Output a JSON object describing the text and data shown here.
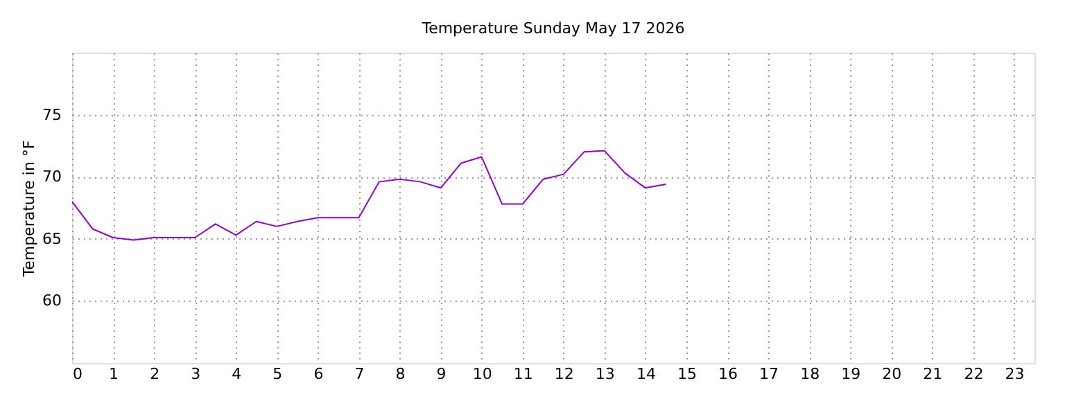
{
  "chart_data": {
    "type": "line",
    "title": "Temperature Sunday May 17 2026",
    "ylabel": "Temperature in °F",
    "x": [
      0,
      0.5,
      1,
      1.5,
      2,
      2.5,
      3,
      3.5,
      4,
      4.5,
      5,
      5.5,
      6,
      6.5,
      7,
      7.5,
      8,
      8.5,
      9,
      9.5,
      10,
      10.5,
      11,
      11.5,
      12,
      12.5,
      13,
      13.5,
      14,
      14.5
    ],
    "series": [
      {
        "color": "#9400d3",
        "values": [
          68.0,
          65.8,
          65.1,
          64.9,
          65.1,
          65.1,
          65.1,
          66.2,
          65.3,
          66.4,
          66.0,
          66.4,
          66.7,
          66.7,
          66.7,
          69.6,
          69.8,
          69.6,
          69.1,
          71.1,
          71.6,
          67.8,
          67.8,
          69.8,
          70.2,
          72.0,
          72.1,
          70.3,
          69.1,
          69.4
        ]
      }
    ],
    "xlim": [
      0,
      23.5
    ],
    "xticks": [
      0,
      1,
      2,
      3,
      4,
      5,
      6,
      7,
      8,
      9,
      10,
      11,
      12,
      13,
      14,
      15,
      16,
      17,
      18,
      19,
      20,
      21,
      22,
      23
    ],
    "ylim": [
      55,
      80
    ],
    "yticks": [
      60,
      65,
      70,
      75
    ],
    "grid": true,
    "legend": false,
    "marker": "none",
    "line_style": "solid"
  }
}
